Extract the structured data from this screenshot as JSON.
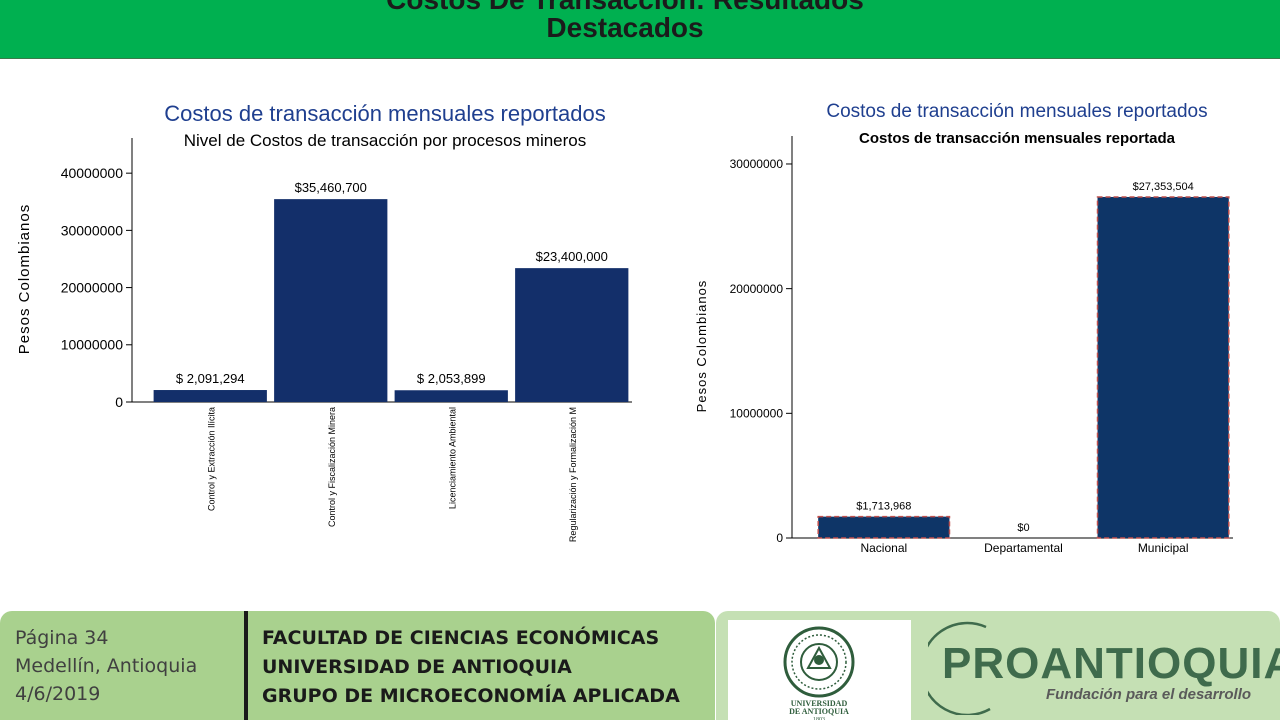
{
  "header": {
    "title_line1": "Costos De Transacción: Resultados",
    "title_line2": "Destacados",
    "background": "#00b050"
  },
  "chart_data": [
    {
      "type": "bar",
      "title": "Costos de transacción mensuales reportados",
      "subtitle": "Nivel de Costos de transacción por procesos mineros",
      "ylabel": "Pesos Colombianos",
      "xlabel": "",
      "categories": [
        "Control y Extracción Ilícita",
        "Control y Fiscalización Minera",
        "Licenciamiento Ambiental",
        "Regularización y Formalización M"
      ],
      "values": [
        2091294,
        35460700,
        2053899,
        23400000
      ],
      "data_labels": [
        "$ 2,091,294",
        "$35,460,700",
        "$ 2,053,899",
        "$23,400,000"
      ],
      "ylim": [
        0,
        43000000
      ],
      "yticks": [
        0,
        10000000,
        20000000,
        30000000,
        40000000
      ],
      "ytick_labels": [
        "0",
        "10000000",
        "20000000",
        "30000000",
        "40000000"
      ],
      "bar_color": "#132f6a",
      "grid": false
    },
    {
      "type": "bar",
      "title": "Costos de transacción mensuales reportados",
      "subtitle": "Costos de transacción mensuales reportada",
      "ylabel": "Pesos Colombianos",
      "xlabel": "",
      "categories": [
        "Nacional",
        "Departamental",
        "Municipal"
      ],
      "values": [
        1713968,
        0,
        27353504
      ],
      "data_labels": [
        "$1,713,968",
        "$0",
        "$27,353,504"
      ],
      "ylim": [
        0,
        30800000
      ],
      "yticks": [
        0,
        10000000,
        20000000,
        30000000
      ],
      "ytick_labels": [
        "0",
        "10000000",
        "20000000",
        "30000000"
      ],
      "bar_color": "#0e3567",
      "bar_outline": "#c0504d",
      "grid": false
    }
  ],
  "footer": {
    "page": "Página 34",
    "city": "Medellín, Antioquia",
    "date": "4/6/2019",
    "org_line1": "FACULTAD DE CIENCIAS ECONÓMICAS",
    "org_line2": "UNIVERSIDAD DE ANTIOQUIA",
    "org_line3": "GRUPO DE MICROECONOMÍA APLICADA"
  },
  "logos": {
    "udea_text1": "UNIVERSIDAD",
    "udea_text2": "DE ANTIOQUIA",
    "udea_year": "1803",
    "proantioquia_name": "PROANTIOQUIA",
    "proantioquia_tagline": "Fundación para el desarrollo"
  }
}
